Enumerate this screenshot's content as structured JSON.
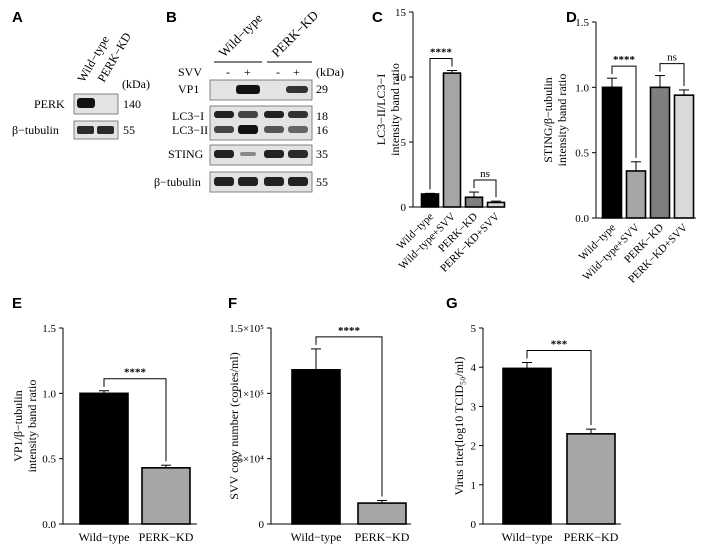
{
  "panel_letters": [
    "A",
    "B",
    "C",
    "D",
    "E",
    "F",
    "G"
  ],
  "blot_a": {
    "lane_labels": [
      "Wild−type",
      "PERK−KD"
    ],
    "kda_header": "(kDa)",
    "rows": [
      {
        "label": "PERK",
        "kda": "140"
      },
      {
        "label": "β−tubulin",
        "kda": "55"
      }
    ]
  },
  "blot_b": {
    "group_labels": [
      "Wild−type",
      "PERK−KD"
    ],
    "svv_label": "SVV",
    "svv_marks": [
      "-",
      "+",
      "-",
      "+"
    ],
    "kda_header": "(kDa)",
    "rows": [
      {
        "label": "VP1",
        "kda": "29"
      },
      {
        "label": "LC3−I",
        "kda": "18"
      },
      {
        "label": "LC3−II",
        "kda": "16"
      },
      {
        "label": "STING",
        "kda": "35"
      },
      {
        "label": "β−tubulin",
        "kda": "55"
      }
    ]
  },
  "chart_data": [
    {
      "panel": "C",
      "type": "bar",
      "categories": [
        "Wild−type",
        "Wild−type+SVV",
        "PERK−KD",
        "PERK−KD+SVV"
      ],
      "values": [
        1.0,
        10.3,
        0.75,
        0.35
      ],
      "errors": [
        0.05,
        0.2,
        0.4,
        0.1
      ],
      "colors": [
        "#000000",
        "#a6a6a6",
        "#7f7f7f",
        "#d9d9d9"
      ],
      "ylabel": "LC3−II/LC3−I\nintensity band ratio",
      "ylim": [
        0,
        15
      ],
      "yticks": [
        "0",
        "5",
        "10",
        "15"
      ],
      "significance": [
        {
          "from": 0,
          "to": 1,
          "label": "****"
        },
        {
          "from": 2,
          "to": 3,
          "label": "ns"
        }
      ]
    },
    {
      "panel": "D",
      "type": "bar",
      "categories": [
        "Wild−type",
        "Wild−type+SVV",
        "PERK−KD",
        "PERK−KD+SVV"
      ],
      "values": [
        1.0,
        0.36,
        1.0,
        0.94
      ],
      "errors": [
        0.07,
        0.07,
        0.09,
        0.04
      ],
      "colors": [
        "#000000",
        "#a6a6a6",
        "#7f7f7f",
        "#d9d9d9"
      ],
      "ylabel": "STING/β−tubulin\nintensity band ratio",
      "ylim": [
        0,
        1.5
      ],
      "yticks": [
        "0.0",
        "0.5",
        "1.0",
        "1.5"
      ],
      "significance": [
        {
          "from": 0,
          "to": 1,
          "label": "****"
        },
        {
          "from": 2,
          "to": 3,
          "label": "ns"
        }
      ]
    },
    {
      "panel": "E",
      "type": "bar",
      "categories": [
        "Wild−type",
        "PERK−KD"
      ],
      "values": [
        1.0,
        0.43
      ],
      "errors": [
        0.02,
        0.02
      ],
      "colors": [
        "#000000",
        "#a6a6a6"
      ],
      "ylabel": "VP1/β−tubulin\nintensity band ratio",
      "ylim": [
        0,
        1.5
      ],
      "yticks": [
        "0.0",
        "0.5",
        "1.0",
        "1.5"
      ],
      "significance": [
        {
          "from": 0,
          "to": 1,
          "label": "****"
        }
      ]
    },
    {
      "panel": "F",
      "type": "bar",
      "categories": [
        "Wild−type",
        "PERK−KD"
      ],
      "values": [
        118000,
        16000
      ],
      "errors": [
        16000,
        2000
      ],
      "colors": [
        "#000000",
        "#a6a6a6"
      ],
      "ylabel": "SVV copy number (copies/ml)",
      "ylim": [
        0,
        150000
      ],
      "yticks": [
        "0",
        "5×10⁴",
        "1×10⁵",
        "1.5×10⁵"
      ],
      "significance": [
        {
          "from": 0,
          "to": 1,
          "label": "****"
        }
      ]
    },
    {
      "panel": "G",
      "type": "bar",
      "categories": [
        "Wild−type",
        "PERK−KD"
      ],
      "values": [
        3.97,
        2.3
      ],
      "errors": [
        0.15,
        0.12
      ],
      "colors": [
        "#000000",
        "#a6a6a6"
      ],
      "ylabel": "Virus titer(log10 TCID₅₀/ml)",
      "ylim": [
        0,
        5
      ],
      "yticks": [
        "0",
        "1",
        "2",
        "3",
        "4",
        "5"
      ],
      "significance": [
        {
          "from": 0,
          "to": 1,
          "label": "***"
        }
      ]
    }
  ]
}
